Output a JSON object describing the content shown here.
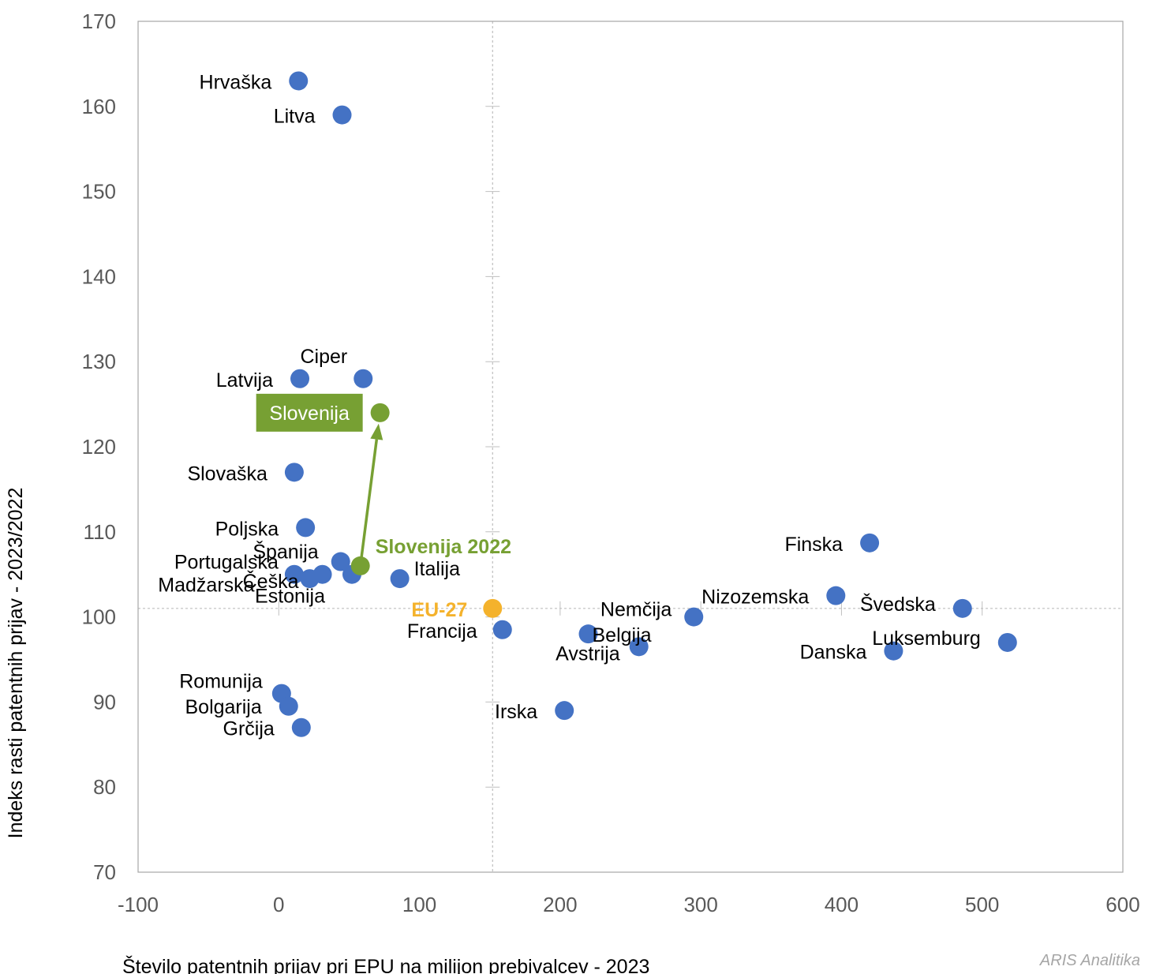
{
  "chart_data": {
    "type": "scatter",
    "xlabel": "Število patentnih prijav pri EPU na milijon prebivalcev - 2023",
    "ylabel": "Indeks rasti patentnih prijav - 2023/2022",
    "xlim": [
      -100,
      600
    ],
    "ylim": [
      70,
      170
    ],
    "x_ticks": [
      "-100",
      "0",
      "100",
      "200",
      "300",
      "400",
      "500",
      "600"
    ],
    "y_ticks": [
      "70",
      "80",
      "90",
      "100",
      "110",
      "120",
      "130",
      "140",
      "150",
      "160",
      "170"
    ],
    "reference_lines": {
      "x": 152,
      "y": 101
    },
    "colors": {
      "country": "#4472c4",
      "slovenia": "#77a033",
      "eu": "#f4b22c",
      "grid": "#bfbfbf"
    },
    "points": [
      {
        "name": "Hrvaška",
        "x": 14,
        "y": 163
      },
      {
        "name": "Litva",
        "x": 45,
        "y": 159
      },
      {
        "name": "Ciper",
        "x": 60,
        "y": 128
      },
      {
        "name": "Latvija",
        "x": 15,
        "y": 128
      },
      {
        "name": "Slovaška",
        "x": 11,
        "y": 117
      },
      {
        "name": "Poljska",
        "x": 19,
        "y": 110.5
      },
      {
        "name": "Španija",
        "x": 44,
        "y": 106.5
      },
      {
        "name": "Portugalska",
        "x": 11,
        "y": 105
      },
      {
        "name": "Češka",
        "x": 22,
        "y": 104.5
      },
      {
        "name": "Madžarska",
        "x": 31,
        "y": 105
      },
      {
        "name": "Estonija",
        "x": 52,
        "y": 105
      },
      {
        "name": "Italija",
        "x": 86,
        "y": 104.5
      },
      {
        "name": "Francija",
        "x": 159,
        "y": 98.5
      },
      {
        "name": "Belgija",
        "x": 220,
        "y": 98
      },
      {
        "name": "Avstrija",
        "x": 256,
        "y": 96.5
      },
      {
        "name": "Nemčija",
        "x": 295,
        "y": 100
      },
      {
        "name": "Nizozemska",
        "x": 396,
        "y": 102.5
      },
      {
        "name": "Finska",
        "x": 420,
        "y": 108.7
      },
      {
        "name": "Švedska",
        "x": 486,
        "y": 101
      },
      {
        "name": "Luksemburg",
        "x": 518,
        "y": 97
      },
      {
        "name": "Danska",
        "x": 437,
        "y": 96
      },
      {
        "name": "Irska",
        "x": 203,
        "y": 89
      },
      {
        "name": "Romunija",
        "x": 2,
        "y": 91
      },
      {
        "name": "Bolgarija",
        "x": 7,
        "y": 89.5
      },
      {
        "name": "Grčija",
        "x": 16,
        "y": 87
      }
    ],
    "eu": {
      "name": "EU-27",
      "x": 152,
      "y": 101
    },
    "slovenia": {
      "name": "Slovenija",
      "x": 72,
      "y": 124
    },
    "slovenia_prev": {
      "name": "Slovenija 2022",
      "x": 58,
      "y": 106
    }
  },
  "watermark": "ARIS Analitika"
}
